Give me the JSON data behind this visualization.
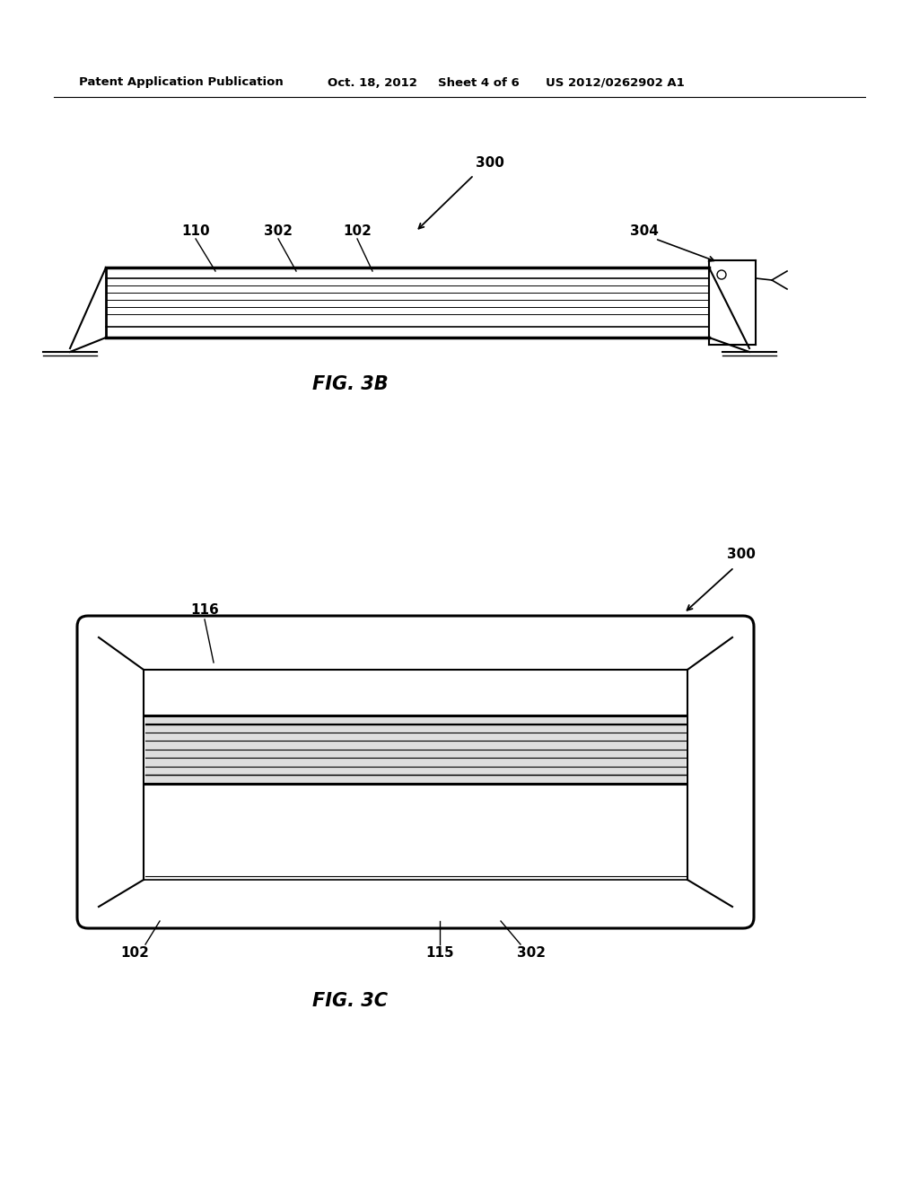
{
  "background_color": "#ffffff",
  "header_text": "Patent Application Publication",
  "header_date": "Oct. 18, 2012",
  "header_sheet": "Sheet 4 of 6",
  "header_patent": "US 2012/0262902 A1",
  "fig3b_label": "FIG. 3B",
  "fig3c_label": "FIG. 3C",
  "line_color": "#000000",
  "gray_fill": "#c8c8c8"
}
